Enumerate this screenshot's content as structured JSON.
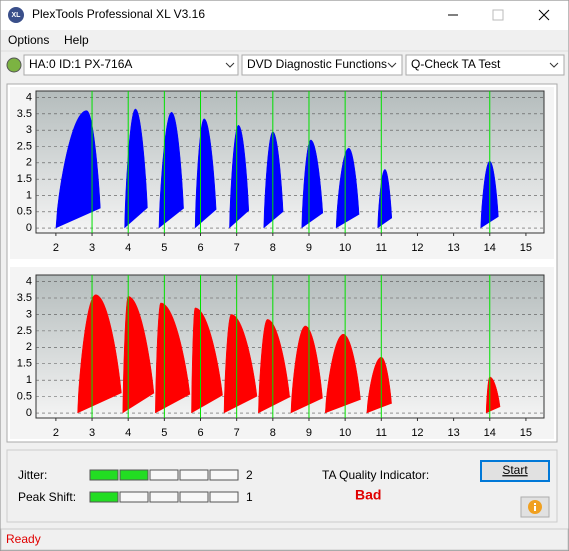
{
  "window": {
    "title": "PlexTools Professional XL V3.16",
    "icon_text": "XL"
  },
  "menu": [
    "Options",
    "Help"
  ],
  "toolbar": {
    "drive": "HA:0 ID:1  PX-716A",
    "function": "DVD Diagnostic Functions",
    "test": "Q-Check TA Test"
  },
  "chart_data": [
    {
      "type": "hump",
      "color": "#0000ff",
      "marker_color": "#00e000",
      "xlim": [
        1.45,
        15.5
      ],
      "ylim": [
        -0.15,
        4.2
      ],
      "xticks": [
        2,
        3,
        4,
        5,
        6,
        7,
        8,
        9,
        10,
        11,
        12,
        13,
        14,
        15
      ],
      "yticks": [
        0,
        0.5,
        1,
        1.5,
        2,
        2.5,
        3,
        3.5,
        4
      ],
      "markers": [
        3,
        4,
        5,
        6,
        7,
        8,
        9,
        10,
        11,
        14
      ],
      "humps": {
        "start": [
          2.0,
          3.9,
          4.85,
          5.85,
          6.8,
          7.75,
          8.8,
          9.75,
          10.9,
          13.75
        ],
        "peak_x": [
          2.85,
          4.2,
          5.2,
          6.1,
          7.05,
          8.0,
          9.05,
          10.1,
          11.1,
          14.0
        ],
        "end": [
          3.25,
          4.55,
          5.55,
          6.45,
          7.35,
          8.3,
          9.4,
          10.4,
          11.3,
          14.25
        ],
        "peak": [
          3.6,
          3.65,
          3.55,
          3.35,
          3.15,
          2.95,
          2.7,
          2.45,
          1.8,
          2.05
        ]
      }
    },
    {
      "type": "hump",
      "color": "#ff0000",
      "marker_color": "#00e000",
      "xlim": [
        1.45,
        15.5
      ],
      "ylim": [
        -0.15,
        4.2
      ],
      "xticks": [
        2,
        3,
        4,
        5,
        6,
        7,
        8,
        9,
        10,
        11,
        12,
        13,
        14,
        15
      ],
      "yticks": [
        0,
        0.5,
        1,
        1.5,
        2,
        2.5,
        3,
        3.5,
        4
      ],
      "markers": [
        3,
        4,
        5,
        6,
        7,
        8,
        9,
        10,
        11,
        14
      ],
      "humps": {
        "start": [
          2.6,
          3.85,
          4.75,
          5.75,
          6.65,
          7.6,
          8.5,
          9.45,
          10.6,
          13.9
        ],
        "peak_x": [
          3.1,
          4.0,
          4.9,
          5.85,
          6.85,
          7.85,
          8.9,
          9.95,
          11.0,
          14.0
        ],
        "end": [
          3.85,
          4.75,
          5.75,
          6.65,
          7.6,
          8.5,
          9.4,
          10.45,
          11.3,
          14.3
        ],
        "peak": [
          3.6,
          3.55,
          3.35,
          3.2,
          3.0,
          2.85,
          2.65,
          2.4,
          1.7,
          1.1
        ]
      }
    }
  ],
  "results": {
    "jitter_label": "Jitter:",
    "jitter": 2,
    "peak_shift_label": "Peak Shift:",
    "peak_shift": 1,
    "ta_label": "TA Quality Indicator:",
    "ta_result": "Bad",
    "start": "Start"
  },
  "status": "Ready"
}
